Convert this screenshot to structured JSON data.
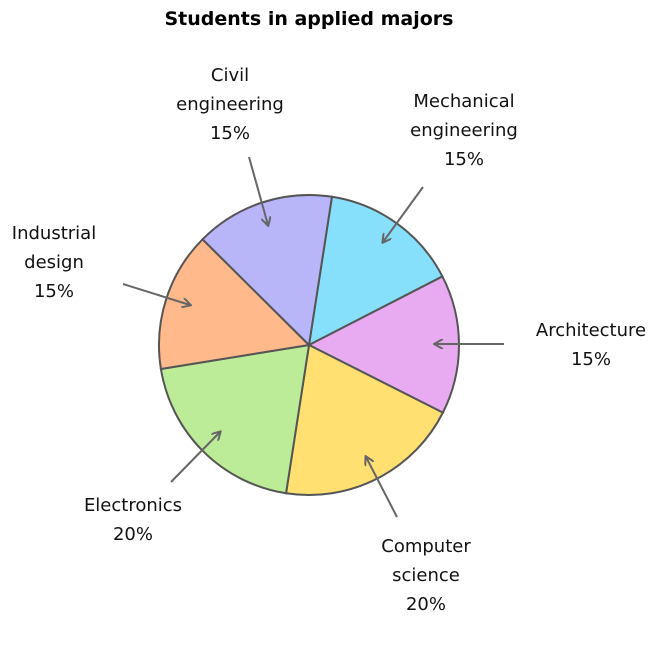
{
  "chart_data": {
    "type": "pie",
    "title": "Students in applied majors",
    "categories": [
      "Mechanical engineering",
      "Architecture",
      "Computer science",
      "Electronics",
      "Industrial design",
      "Civil engineering"
    ],
    "values": [
      15,
      15,
      20,
      20,
      15,
      15
    ],
    "value_labels": [
      "15%",
      "15%",
      "20%",
      "20%",
      "15%",
      "15%"
    ],
    "colors": [
      "#87e0fb",
      "#e8aaf0",
      "#ffe070",
      "#bdec98",
      "#ffb98a",
      "#b8b5f8"
    ]
  }
}
